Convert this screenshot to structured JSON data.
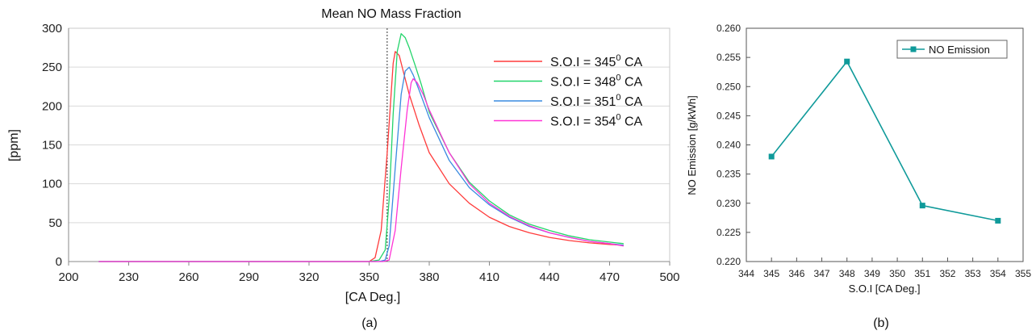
{
  "chart_data": [
    {
      "id": "a",
      "type": "line",
      "title": "Mean NO Mass Fraction",
      "xlabel": "[CA Deg.]",
      "ylabel": "[ppm]",
      "caption": "(a)",
      "xlim": [
        200,
        500
      ],
      "ylim": [
        0,
        300
      ],
      "xticks": [
        "200",
        "230",
        "260",
        "290",
        "320",
        "350",
        "380",
        "410",
        "440",
        "470",
        "500"
      ],
      "yticks": [
        "0",
        "50",
        "100",
        "150",
        "200",
        "250",
        "300"
      ],
      "grid": "horizontal",
      "legend_position": "top-right",
      "reference_line_x": 359,
      "series": [
        {
          "name": "S.O.I = 345",
          "sup": "0",
          "unit": " CA",
          "color": "#ff3b3b",
          "x": [
            215,
            340,
            350,
            353,
            356,
            359,
            362,
            363,
            365,
            367,
            370,
            375,
            380,
            390,
            400,
            410,
            420,
            430,
            440,
            450,
            460,
            470,
            477
          ],
          "y": [
            0,
            0,
            0,
            5,
            40,
            140,
            255,
            270,
            265,
            245,
            215,
            175,
            140,
            100,
            75,
            57,
            45,
            37,
            31,
            27,
            24,
            22,
            21
          ]
        },
        {
          "name": "S.O.I = 348",
          "sup": "0",
          "unit": " CA",
          "color": "#22d46a",
          "x": [
            215,
            350,
            355,
            358,
            360,
            362,
            364,
            366,
            368,
            370,
            373,
            376,
            380,
            390,
            400,
            410,
            420,
            430,
            440,
            450,
            460,
            470,
            477
          ],
          "y": [
            0,
            0,
            2,
            15,
            80,
            190,
            270,
            293,
            288,
            275,
            252,
            228,
            192,
            140,
            102,
            78,
            60,
            48,
            40,
            33,
            28,
            25,
            23
          ]
        },
        {
          "name": "S.O.I = 351",
          "sup": "0",
          "unit": " CA",
          "color": "#3a8be0",
          "x": [
            215,
            355,
            358,
            360,
            363,
            366,
            368,
            370,
            372,
            375,
            380,
            390,
            400,
            410,
            420,
            430,
            440,
            450,
            460,
            470,
            477
          ],
          "y": [
            0,
            0,
            2,
            20,
            120,
            215,
            245,
            250,
            240,
            220,
            185,
            130,
            95,
            73,
            57,
            45,
            37,
            31,
            26,
            23,
            21
          ]
        },
        {
          "name": "S.O.I = 354",
          "sup": "0",
          "unit": " CA",
          "color": "#ff33d6",
          "x": [
            215,
            357,
            360,
            363,
            366,
            369,
            371,
            372,
            374,
            377,
            380,
            390,
            400,
            410,
            420,
            430,
            440,
            450,
            460,
            470,
            477
          ],
          "y": [
            0,
            0,
            2,
            40,
            120,
            195,
            230,
            235,
            230,
            215,
            195,
            140,
            100,
            75,
            58,
            46,
            37,
            31,
            26,
            23,
            20
          ]
        }
      ]
    },
    {
      "id": "b",
      "type": "line",
      "markers": "square",
      "xlabel": "S.O.I [CA Deg.]",
      "ylabel": "NO Emission [g/kWh]",
      "caption": "(b)",
      "xlim": [
        344,
        355
      ],
      "ylim": [
        0.22,
        0.26
      ],
      "xticks": [
        "344",
        "345",
        "346",
        "347",
        "348",
        "349",
        "350",
        "351",
        "352",
        "353",
        "354",
        "355"
      ],
      "yticks": [
        "0.220",
        "0.225",
        "0.230",
        "0.235",
        "0.240",
        "0.245",
        "0.250",
        "0.255",
        "0.260"
      ],
      "legend_position": "top-right",
      "series": [
        {
          "name": "NO Emission",
          "color": "#0f9a9a",
          "x": [
            345,
            348,
            351,
            354
          ],
          "y": [
            0.238,
            0.2543,
            0.2296,
            0.227
          ]
        }
      ]
    }
  ]
}
